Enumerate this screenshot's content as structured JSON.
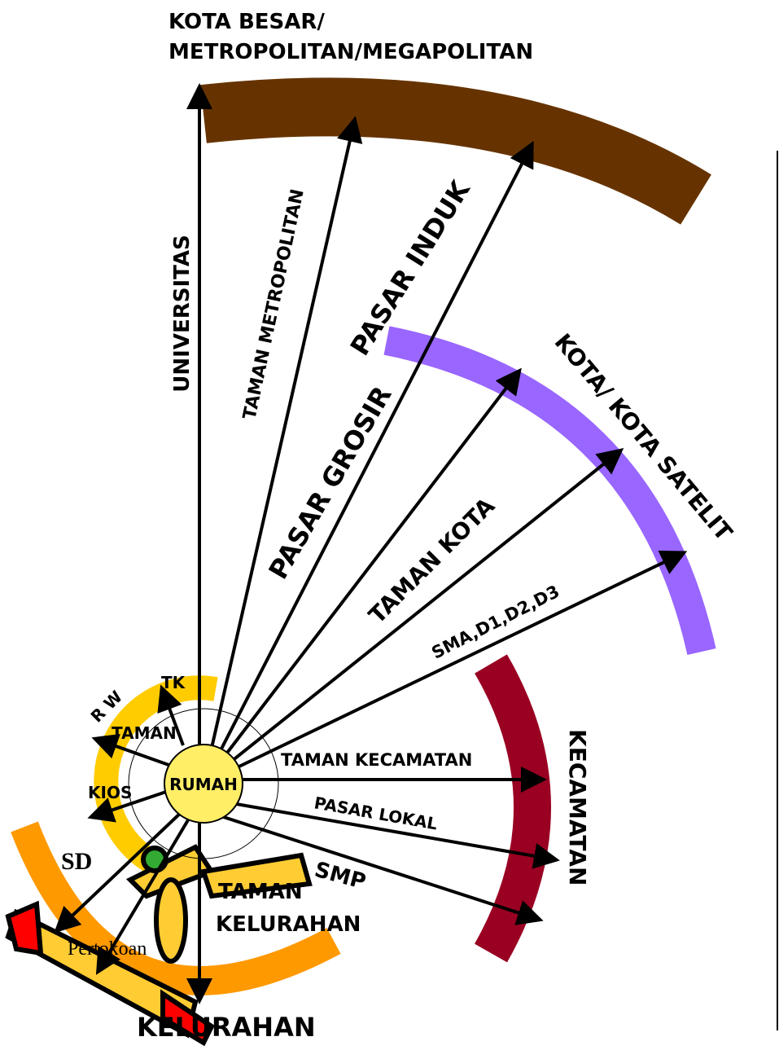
{
  "title": {
    "line1": "KOTA BESAR/",
    "line2": "METROPOLITAN/MEGAPOLITAN"
  },
  "center": "RUMAH",
  "metropolitan": {
    "universitas": "UNIVERSITAS",
    "taman": "TAMAN METROPOLITAN",
    "pasar": "PASAR INDUK"
  },
  "kota": {
    "label": "KOTA/ KOTA SATELIT",
    "pasar": "PASAR GROSIR",
    "taman": "TAMAN KOTA",
    "sekolah": "SMA,D1,D2,D3"
  },
  "kecamatan": {
    "label": "KECAMATAN",
    "taman": "TAMAN KECAMATAN",
    "pasar": "PASAR LOKAL",
    "sekolah": "SMP"
  },
  "kelurahan": {
    "label": "KELURAHAN",
    "taman_line1": "TAMAN",
    "taman_line2": "KELURAHAN",
    "sekolah": "SD",
    "toko": "Pertokoan"
  },
  "rw": {
    "label": "R W",
    "taman": "TAMAN",
    "sekolah": "TK",
    "toko": "KIOS"
  }
}
